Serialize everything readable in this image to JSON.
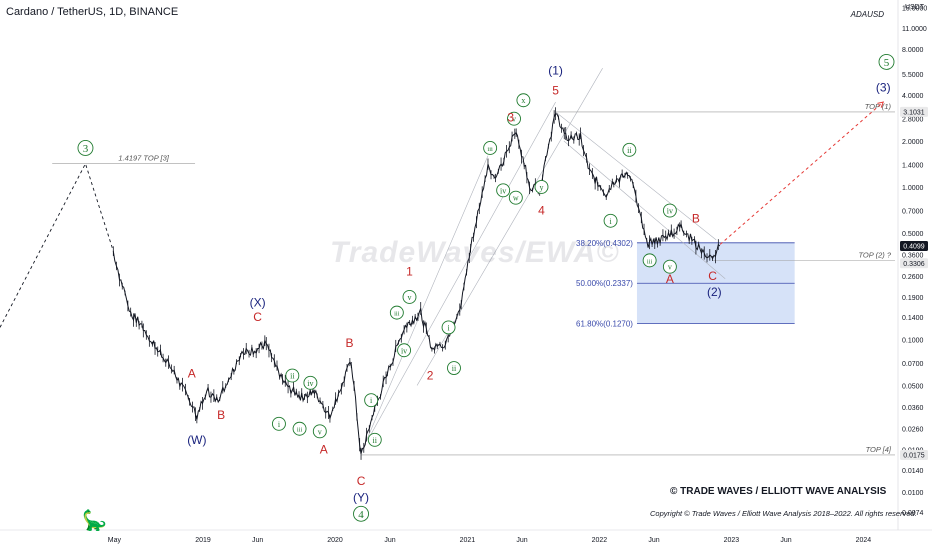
{
  "header": {
    "title": "Cardano / TetherUS, 1D, BINANCE",
    "symbol": "ADAUSD",
    "unit": "USDT"
  },
  "watermark": "TradeWaves/EWA©",
  "brand": "© TRADE WAVES / ELLIOTT WAVE ANALYSIS",
  "copyright": "Copyright © Trade Waves / Elliott Wave Analysis 2018–2022. All rights reserved.",
  "current_price": "0.4099",
  "price_marks": [
    {
      "label": "3.1031",
      "bg": "#e9e9ea",
      "fg": "#131722"
    },
    {
      "label": "0.4099",
      "bg": "#131722",
      "fg": "#ffffff"
    },
    {
      "label": "0.3306",
      "bg": "#e9e9ea",
      "fg": "#131722"
    },
    {
      "label": "0.0175",
      "bg": "#e9e9ea",
      "fg": "#131722"
    }
  ],
  "colors": {
    "candles": "#131722",
    "green_count": "#1f7a2e",
    "red_count": "#c62828",
    "navy_count": "#1a237e",
    "fib_box": "#c5d5f5",
    "projection": "#e53935"
  },
  "chart_data": {
    "type": "candlestick",
    "yscale": "log",
    "ylim": [
      0.0055,
      14
    ],
    "y_ticks": [
      "15.0000",
      "11.0000",
      "8.0000",
      "5.5000",
      "4.0000",
      "2.8000",
      "2.0000",
      "1.4000",
      "1.0000",
      "0.7000",
      "0.5000",
      "0.3600",
      "0.2600",
      "0.1900",
      "0.1400",
      "0.1000",
      "0.0700",
      "0.0500",
      "0.0360",
      "0.0260",
      "0.0190",
      "0.0140",
      "0.0100",
      "0.0074"
    ],
    "x_ticks": [
      "May",
      "2019",
      "Jun",
      "2020",
      "Jun",
      "2021",
      "Jun",
      "2022",
      "Jun",
      "2023",
      "Jun",
      "2024"
    ],
    "price_path": [
      [
        "2018-04-28",
        0.38
      ],
      [
        "2018-05-15",
        0.26
      ],
      [
        "2018-06-15",
        0.15
      ],
      [
        "2018-07-20",
        0.12
      ],
      [
        "2018-08-14",
        0.095
      ],
      [
        "2018-09-20",
        0.075
      ],
      [
        "2018-11-25",
        0.04
      ],
      [
        "2018-12-15",
        0.032
      ],
      [
        "2019-01-15",
        0.046
      ],
      [
        "2019-02-08",
        0.04
      ],
      [
        "2019-03-05",
        0.05
      ],
      [
        "2019-04-15",
        0.08
      ],
      [
        "2019-05-20",
        0.085
      ],
      [
        "2019-06-25",
        0.094
      ],
      [
        "2019-08-01",
        0.057
      ],
      [
        "2019-09-01",
        0.047
      ],
      [
        "2019-10-01",
        0.042
      ],
      [
        "2019-11-05",
        0.045
      ],
      [
        "2019-12-18",
        0.032
      ],
      [
        "2020-02-15",
        0.072
      ],
      [
        "2020-03-13",
        0.0175
      ],
      [
        "2020-04-20",
        0.035
      ],
      [
        "2020-05-25",
        0.06
      ],
      [
        "2020-07-10",
        0.12
      ],
      [
        "2020-08-25",
        0.15
      ],
      [
        "2020-09-25",
        0.085
      ],
      [
        "2020-11-01",
        0.095
      ],
      [
        "2020-12-15",
        0.17
      ],
      [
        "2021-01-10",
        0.4
      ],
      [
        "2021-02-27",
        1.42
      ],
      [
        "2021-03-20",
        1.1
      ],
      [
        "2021-05-16",
        2.4
      ],
      [
        "2021-06-22",
        1.0
      ],
      [
        "2021-07-20",
        1.0
      ],
      [
        "2021-09-02",
        3.1031
      ],
      [
        "2021-09-30",
        2.1
      ],
      [
        "2021-11-10",
        2.1
      ],
      [
        "2021-12-05",
        1.25
      ],
      [
        "2022-01-20",
        0.9
      ],
      [
        "2022-02-10",
        1.1
      ],
      [
        "2022-03-28",
        1.2
      ],
      [
        "2022-05-12",
        0.42
      ],
      [
        "2022-06-18",
        0.45
      ],
      [
        "2022-08-15",
        0.55
      ],
      [
        "2022-09-25",
        0.42
      ],
      [
        "2022-11-10",
        0.3306
      ],
      [
        "2022-11-30",
        0.4099
      ]
    ],
    "labels": [
      {
        "text": "3",
        "date": "2018-02-10",
        "price": 1.8,
        "style": "green-circle"
      },
      {
        "text": "(W)",
        "date": "2018-12-15",
        "price": 0.022,
        "style": "navy"
      },
      {
        "text": "A",
        "date": "2018-12-01",
        "price": 0.06,
        "style": "red"
      },
      {
        "text": "B",
        "date": "2019-02-20",
        "price": 0.032,
        "style": "red"
      },
      {
        "text": "(X)",
        "date": "2019-06-01",
        "price": 0.175,
        "style": "navy"
      },
      {
        "text": "C",
        "date": "2019-06-01",
        "price": 0.14,
        "style": "red"
      },
      {
        "text": "i",
        "date": "2019-07-30",
        "price": 0.028,
        "style": "green-circle"
      },
      {
        "text": "ii",
        "date": "2019-09-05",
        "price": 0.058,
        "style": "green-circle"
      },
      {
        "text": "iii",
        "date": "2019-09-25",
        "price": 0.026,
        "style": "green-circle"
      },
      {
        "text": "iv",
        "date": "2019-10-25",
        "price": 0.052,
        "style": "green-circle"
      },
      {
        "text": "v",
        "date": "2019-11-20",
        "price": 0.025,
        "style": "green-circle"
      },
      {
        "text": "A",
        "date": "2019-12-01",
        "price": 0.019,
        "style": "red"
      },
      {
        "text": "B",
        "date": "2020-02-10",
        "price": 0.095,
        "style": "red"
      },
      {
        "text": "C",
        "date": "2020-03-13",
        "price": 0.0118,
        "style": "red"
      },
      {
        "text": "(Y)",
        "date": "2020-03-13",
        "price": 0.0092,
        "style": "navy"
      },
      {
        "text": "4",
        "date": "2020-03-13",
        "price": 0.0072,
        "style": "green-circle"
      },
      {
        "text": "i",
        "date": "2020-04-10",
        "price": 0.04,
        "style": "green-circle"
      },
      {
        "text": "ii",
        "date": "2020-04-20",
        "price": 0.022,
        "style": "green-circle"
      },
      {
        "text": "iii",
        "date": "2020-06-20",
        "price": 0.15,
        "style": "green-circle"
      },
      {
        "text": "iv",
        "date": "2020-07-10",
        "price": 0.085,
        "style": "green-circle"
      },
      {
        "text": "v",
        "date": "2020-07-25",
        "price": 0.19,
        "style": "green-circle"
      },
      {
        "text": "1",
        "date": "2020-07-25",
        "price": 0.28,
        "style": "red"
      },
      {
        "text": "2",
        "date": "2020-09-20",
        "price": 0.058,
        "style": "red"
      },
      {
        "text": "i",
        "date": "2020-11-10",
        "price": 0.12,
        "style": "green-circle"
      },
      {
        "text": "ii",
        "date": "2020-11-25",
        "price": 0.065,
        "style": "green-circle"
      },
      {
        "text": "iii",
        "date": "2021-03-05",
        "price": 1.8,
        "style": "green-circle"
      },
      {
        "text": "iv",
        "date": "2021-04-10",
        "price": 0.95,
        "style": "green-circle"
      },
      {
        "text": "v",
        "date": "2021-05-10",
        "price": 2.8,
        "style": "green-circle"
      },
      {
        "text": "w",
        "date": "2021-05-15",
        "price": 0.85,
        "style": "green-circle"
      },
      {
        "text": "x",
        "date": "2021-06-05",
        "price": 3.7,
        "style": "green-circle"
      },
      {
        "text": "y",
        "date": "2021-07-25",
        "price": 1.0,
        "style": "green-circle"
      },
      {
        "text": "3",
        "date": "2021-05-01",
        "price": 2.85,
        "style": "red"
      },
      {
        "text": "4",
        "date": "2021-07-25",
        "price": 0.7,
        "style": "red"
      },
      {
        "text": "5",
        "date": "2021-09-02",
        "price": 4.3,
        "style": "red"
      },
      {
        "text": "(1)",
        "date": "2021-09-02",
        "price": 5.8,
        "style": "navy"
      },
      {
        "text": "ii",
        "date": "2022-03-25",
        "price": 1.75,
        "style": "green-circle"
      },
      {
        "text": "i",
        "date": "2022-02-01",
        "price": 0.6,
        "style": "green-circle"
      },
      {
        "text": "iii",
        "date": "2022-05-20",
        "price": 0.33,
        "style": "green-circle"
      },
      {
        "text": "iv",
        "date": "2022-07-15",
        "price": 0.7,
        "style": "green-circle"
      },
      {
        "text": "v",
        "date": "2022-07-15",
        "price": 0.3,
        "style": "green-circle"
      },
      {
        "text": "A",
        "date": "2022-07-15",
        "price": 0.25,
        "style": "red"
      },
      {
        "text": "B",
        "date": "2022-09-25",
        "price": 0.62,
        "style": "red"
      },
      {
        "text": "C",
        "date": "2022-11-10",
        "price": 0.26,
        "style": "red"
      },
      {
        "text": "(2)",
        "date": "2022-11-15",
        "price": 0.205,
        "style": "navy"
      },
      {
        "text": "(3)",
        "date": "2024-02-25",
        "price": 4.5,
        "style": "navy"
      },
      {
        "text": "5",
        "date": "2024-03-05",
        "price": 6.6,
        "style": "green-circle"
      }
    ],
    "levels": [
      {
        "label": "1.4197 TOP [3]",
        "price": 1.4197,
        "from": "2017-11-10",
        "to": "2018-12-10",
        "style": "grey"
      },
      {
        "label": "TOP (1)",
        "price": 3.1031,
        "from": "2021-09-02",
        "to": "2024-06-15",
        "style": "grey"
      },
      {
        "label": "TOP (2) ?",
        "price": 0.3306,
        "from": "2022-11-10",
        "to": "2024-06-15",
        "style": "grey"
      },
      {
        "label": "TOP [4]",
        "price": 0.0175,
        "from": "2020-03-13",
        "to": "2024-06-15",
        "style": "grey"
      }
    ],
    "fib": {
      "from": "2022-04-15",
      "to": "2023-06-25",
      "levels": [
        {
          "label": "38.20%(0.4302)",
          "price": 0.4302
        },
        {
          "label": "50.00%(0.2337)",
          "price": 0.2337
        },
        {
          "label": "61.80%(0.1270)",
          "price": 0.127
        }
      ]
    },
    "projection": {
      "from": [
        "2022-12-01",
        0.42
      ],
      "to": [
        "2024-02-25",
        3.6
      ]
    }
  }
}
